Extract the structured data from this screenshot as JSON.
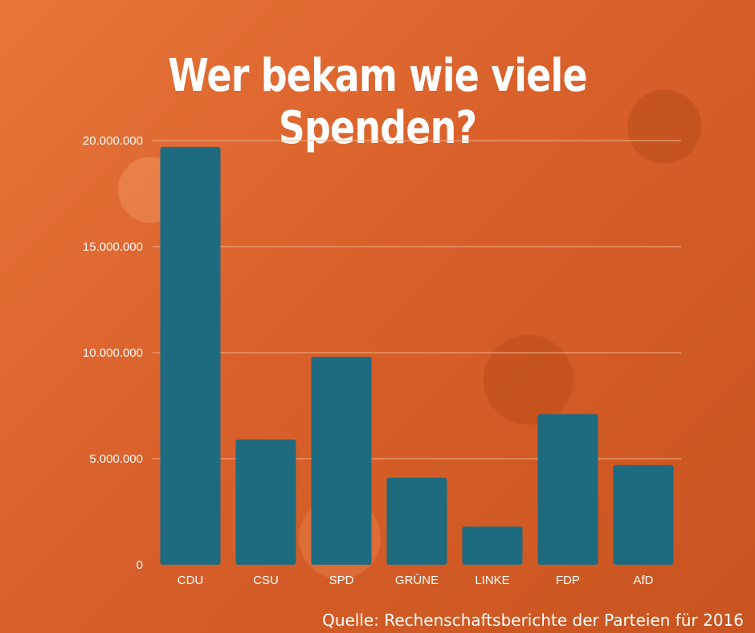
{
  "title": "Wer bekam wie viele Spenden?",
  "source": "Quelle: Rechenschaftsberichte der Parteien für 2016",
  "colors": {
    "bar": "#1e6a7f",
    "grid": "#f3b08a",
    "text": "#ffffff"
  },
  "chart_data": {
    "type": "bar",
    "title": "Wer bekam wie viele Spenden?",
    "xlabel": "",
    "ylabel": "",
    "categories": [
      "CDU",
      "CSU",
      "SPD",
      "GRÜNE",
      "LINKE",
      "FDP",
      "AfD"
    ],
    "values": [
      19700000,
      5900000,
      9800000,
      4100000,
      1800000,
      7100000,
      4700000
    ],
    "ylim": [
      0,
      20000000
    ],
    "yticks": [
      0,
      5000000,
      10000000,
      15000000,
      20000000
    ],
    "ytick_labels": [
      "0",
      "5.000.000",
      "10.000.000",
      "15.000.000",
      "20.000.000"
    ],
    "grid": true
  }
}
